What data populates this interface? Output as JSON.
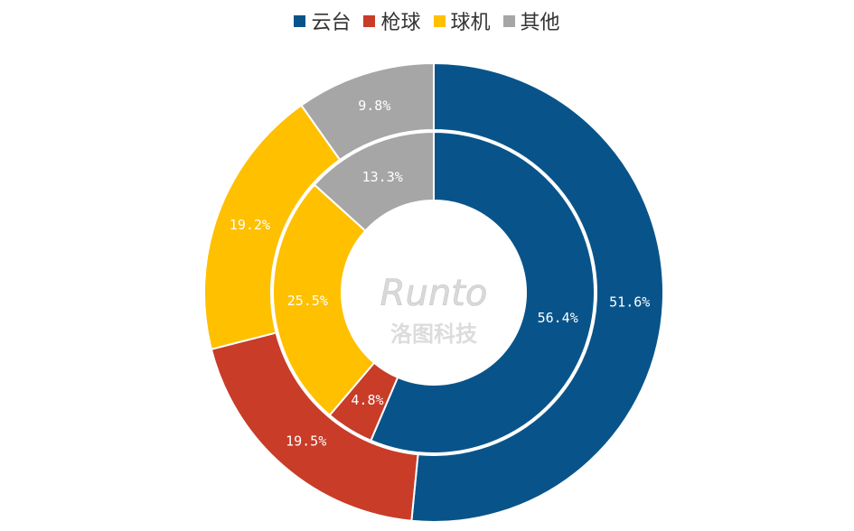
{
  "legend": {
    "items": [
      {
        "label": "云台",
        "color": "#08548A"
      },
      {
        "label": "枪球",
        "color": "#C83C28"
      },
      {
        "label": "球机",
        "color": "#FFC000"
      },
      {
        "label": "其他",
        "color": "#A6A6A6"
      }
    ]
  },
  "watermark": {
    "text": "Runto 洛图科技"
  },
  "chart_data": {
    "type": "pie",
    "variant": "donut-nested",
    "categories": [
      "云台",
      "枪球",
      "球机",
      "其他"
    ],
    "colors": [
      "#08548A",
      "#C83C28",
      "#FFC000",
      "#A6A6A6"
    ],
    "series": [
      {
        "ring": "outer",
        "values": [
          51.6,
          19.5,
          19.2,
          9.8
        ],
        "labels": [
          "51.6%",
          "19.5%",
          "19.2%",
          "9.8%"
        ]
      },
      {
        "ring": "inner",
        "values": [
          56.4,
          4.8,
          25.5,
          13.3
        ],
        "labels": [
          "56.4%",
          "4.8%",
          "25.5%",
          "13.3%"
        ]
      }
    ],
    "legend_position": "top"
  }
}
